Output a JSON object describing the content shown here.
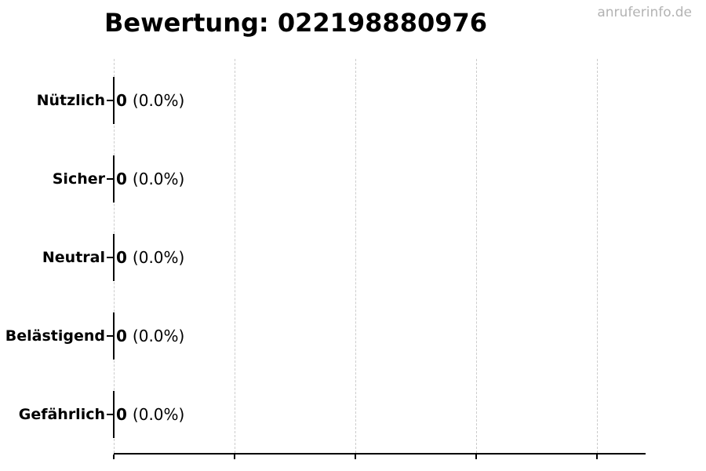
{
  "header": {
    "watermark": "anruferinfo.de"
  },
  "colors": {
    "background": "#ffffff",
    "text": "#000000",
    "axis": "#000000",
    "bar_edge": "#000000",
    "grid": "#cccccc",
    "watermark": "#b3b3b3"
  },
  "chart_data": {
    "type": "bar",
    "orientation": "horizontal",
    "title": "Bewertung: 022198880976",
    "categories": [
      "Nützlich",
      "Sicher",
      "Neutral",
      "Belästigend",
      "Gefährlich"
    ],
    "values": [
      0,
      0,
      0,
      0,
      0
    ],
    "count_labels": [
      "0",
      "0",
      "0",
      "0",
      "0"
    ],
    "percent_labels": [
      "(0.0%)",
      "(0.0%)",
      "(0.0%)",
      "(0.0%)",
      "(0.0%)"
    ],
    "xlabel": "",
    "ylabel": "",
    "xlim": [
      0,
      4.4
    ],
    "xticks": [
      0,
      1,
      2,
      3,
      4
    ],
    "xtick_labels_visible": false,
    "grid": true,
    "grid_style": "vertical-dashed",
    "legend": false
  }
}
